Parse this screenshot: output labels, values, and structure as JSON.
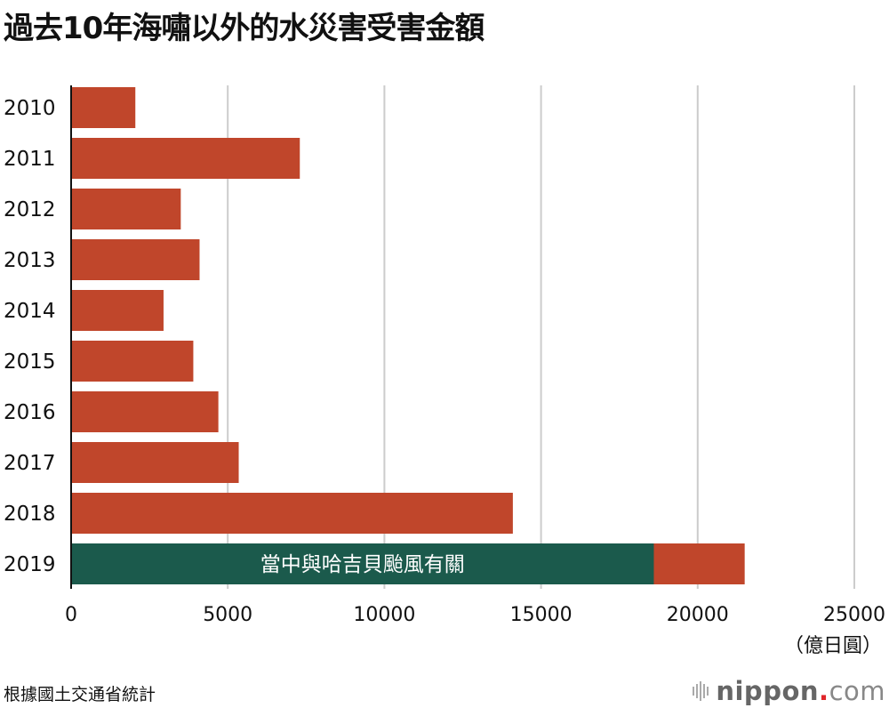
{
  "chart_data": {
    "type": "bar",
    "orientation": "horizontal",
    "title": "過去10年海嘯以外的水災害受害金額",
    "categories": [
      "2010",
      "2011",
      "2012",
      "2013",
      "2014",
      "2015",
      "2016",
      "2017",
      "2018",
      "2019"
    ],
    "values": [
      2050,
      7300,
      3500,
      4100,
      2950,
      3900,
      4700,
      5350,
      14100,
      21500
    ],
    "highlight": {
      "category": "2019",
      "value": 18600,
      "label": "當中與哈吉貝颱風有關",
      "color": "#1b5a4c"
    },
    "bar_color": "#c0462b",
    "xlim": [
      0,
      25000
    ],
    "xticks": [
      "0",
      "5000",
      "10000",
      "15000",
      "20000",
      "25000"
    ],
    "xtick_values": [
      0,
      5000,
      10000,
      15000,
      20000,
      25000
    ],
    "unit_label": "（億日圓）",
    "grid": true
  },
  "footer": {
    "source": "根據國土交通省統計",
    "logo_text": "nippon",
    "logo_dot": ".",
    "logo_suffix": "com"
  }
}
